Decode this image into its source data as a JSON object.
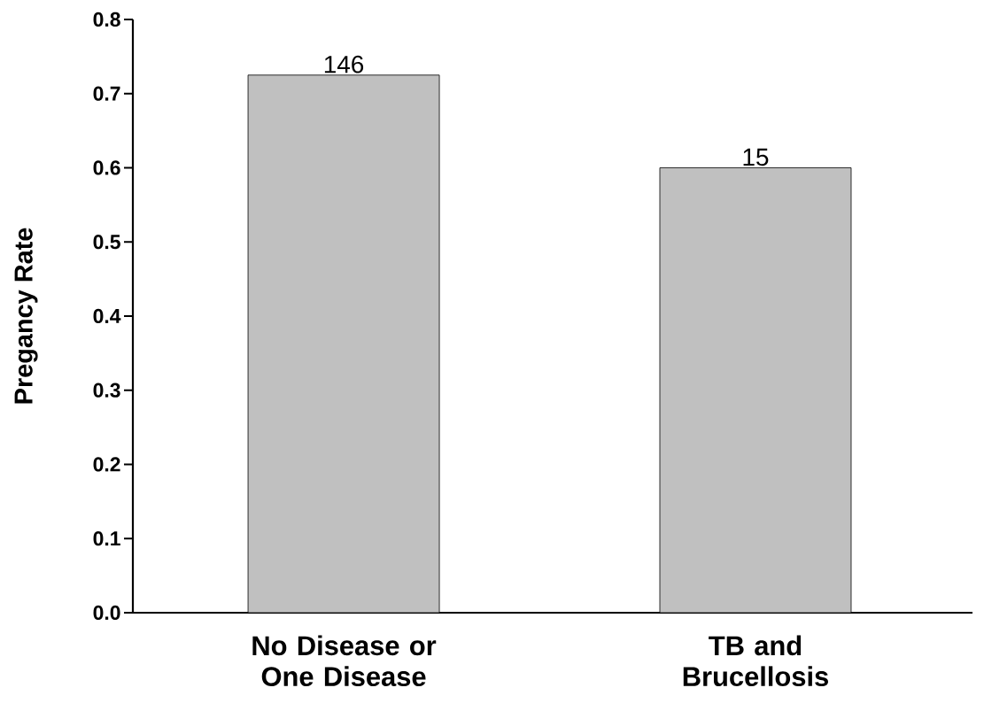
{
  "chart_data": {
    "type": "bar",
    "ylabel": "Pregancy Rate",
    "categories": [
      "No Disease or One Disease",
      "TB and Brucellosis"
    ],
    "values": [
      0.725,
      0.6
    ],
    "annotations": [
      {
        "text": "146",
        "x": "No Disease or One Disease",
        "y": 0.725
      },
      {
        "text": "15",
        "x": "TB and Brucellosis",
        "y": 0.6
      }
    ],
    "color": "#c0c0c0",
    "ylim": [
      0,
      0.8
    ],
    "yticks": [
      {
        "value": 0,
        "label": "0.0"
      },
      0.1,
      0.2,
      0.3,
      0.4,
      0.5,
      0.6,
      0.7,
      0.8
    ],
    "grid": false
  }
}
